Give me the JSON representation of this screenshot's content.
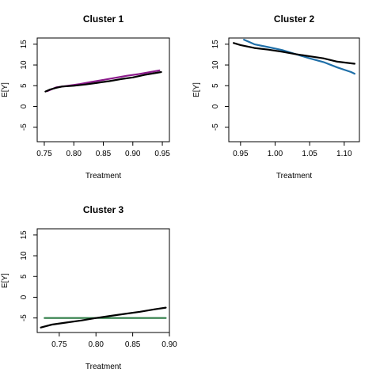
{
  "chart_data": [
    {
      "type": "line",
      "title": "Cluster 1",
      "xlabel": "Treatment",
      "ylabel": "E[Y]",
      "xlim": [
        0.738,
        0.962
      ],
      "ylim": [
        -8.5,
        16.5
      ],
      "xticks": [
        0.75,
        0.8,
        0.85,
        0.9,
        0.95
      ],
      "xtick_labels": [
        "0.75",
        "0.80",
        "0.85",
        "0.90",
        "0.95"
      ],
      "yticks": [
        -5,
        0,
        5,
        10,
        15
      ],
      "ytick_labels": [
        "-5",
        "0",
        "5",
        "10",
        "15"
      ],
      "series": [
        {
          "color": "#8b1a8b",
          "x": [
            0.755,
            0.77,
            0.79,
            0.81,
            0.83,
            0.85,
            0.87,
            0.89,
            0.91,
            0.93,
            0.945
          ],
          "y": [
            3.7,
            4.6,
            5.0,
            5.4,
            5.9,
            6.4,
            6.9,
            7.4,
            7.8,
            8.3,
            8.7
          ]
        },
        {
          "color": "#000000",
          "x": [
            0.752,
            0.76,
            0.77,
            0.78,
            0.8,
            0.82,
            0.84,
            0.86,
            0.88,
            0.9,
            0.92,
            0.94,
            0.948
          ],
          "y": [
            3.6,
            4.1,
            4.5,
            4.8,
            5.0,
            5.3,
            5.7,
            6.1,
            6.6,
            7.0,
            7.6,
            8.1,
            8.3
          ]
        }
      ]
    },
    {
      "type": "line",
      "title": "Cluster 2",
      "xlabel": "Treatment",
      "ylabel": "E[Y]",
      "xlim": [
        0.933,
        1.122
      ],
      "ylim": [
        -8.5,
        16.5
      ],
      "xticks": [
        0.95,
        1.0,
        1.05,
        1.1
      ],
      "xtick_labels": [
        "0.95",
        "1.00",
        "1.05",
        "1.10"
      ],
      "yticks": [
        -5,
        0,
        5,
        10,
        15
      ],
      "ytick_labels": [
        "-5",
        "0",
        "5",
        "10",
        "15"
      ],
      "series": [
        {
          "color": "#1f6fa8",
          "x": [
            0.955,
            0.97,
            0.99,
            1.01,
            1.03,
            1.05,
            1.07,
            1.09,
            1.11,
            1.115
          ],
          "y": [
            16.1,
            15.0,
            14.3,
            13.6,
            12.6,
            11.6,
            10.7,
            9.4,
            8.3,
            7.9
          ]
        },
        {
          "color": "#000000",
          "x": [
            0.94,
            0.95,
            0.97,
            0.99,
            1.01,
            1.03,
            1.05,
            1.07,
            1.09,
            1.115
          ],
          "y": [
            15.3,
            14.8,
            14.1,
            13.7,
            13.2,
            12.6,
            12.1,
            11.6,
            10.8,
            10.3
          ]
        }
      ]
    },
    {
      "type": "line",
      "title": "Cluster 3",
      "xlabel": "Treatment",
      "ylabel": "E[Y]",
      "xlim": [
        0.72,
        0.9
      ],
      "ylim": [
        -8.5,
        16.5
      ],
      "xticks": [
        0.75,
        0.8,
        0.85,
        0.9
      ],
      "xtick_labels": [
        "0.75",
        "0.80",
        "0.85",
        "0.90"
      ],
      "yticks": [
        -5,
        0,
        5,
        10,
        15
      ],
      "ytick_labels": [
        "-5",
        "0",
        "5",
        "10",
        "15"
      ],
      "series": [
        {
          "color": "#2e7d46",
          "x": [
            0.73,
            0.895
          ],
          "y": [
            -5.0,
            -5.0
          ]
        },
        {
          "color": "#000000",
          "x": [
            0.725,
            0.74,
            0.76,
            0.78,
            0.8,
            0.82,
            0.84,
            0.86,
            0.88,
            0.895
          ],
          "y": [
            -7.3,
            -6.6,
            -6.1,
            -5.6,
            -5.0,
            -4.5,
            -4.0,
            -3.5,
            -2.9,
            -2.5
          ]
        }
      ]
    }
  ]
}
